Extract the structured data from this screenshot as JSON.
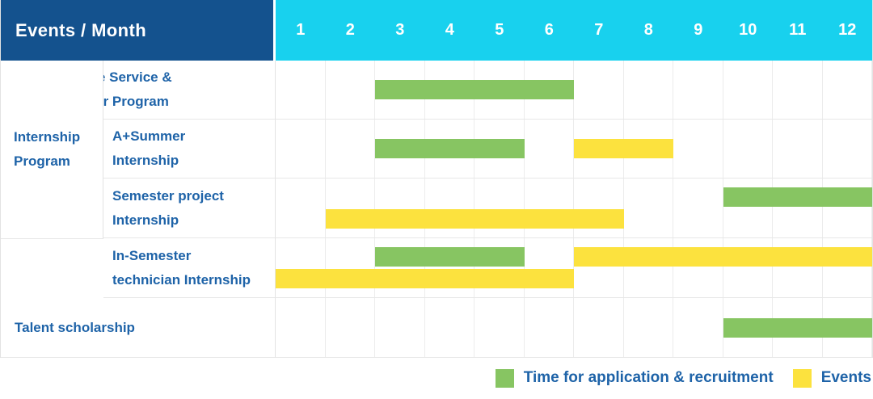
{
  "header": {
    "title": "Events / Month"
  },
  "colors": {
    "header_bg": "#14528E",
    "months_bg": "#18D1EE",
    "green": "#87C562",
    "yellow": "#FCE23E",
    "label_text": "#1E63A8"
  },
  "chart_data": {
    "type": "bar",
    "subtype": "gantt-timeline",
    "xlabel": "Month",
    "x_range": [
      1,
      12
    ],
    "months": [
      "1",
      "2",
      "3",
      "4",
      "5",
      "6",
      "7",
      "8",
      "9",
      "10",
      "11",
      "12"
    ],
    "group": {
      "label_lines": [
        "Internship",
        "Program"
      ],
      "spans_rows": [
        2,
        3,
        4
      ]
    },
    "rows": [
      {
        "id": "rd-substitute-service",
        "label_lines": [
          "RD Substitute Service &",
          "Advance Offer Program"
        ],
        "indent": false,
        "segments": [
          {
            "kind": "application",
            "from": 3,
            "to": 6,
            "lane": "single"
          }
        ]
      },
      {
        "id": "a-plus-summer-internship",
        "label_lines": [
          "A+Summer",
          "Internship"
        ],
        "indent": true,
        "segments": [
          {
            "kind": "application",
            "from": 3,
            "to": 5,
            "lane": "single"
          },
          {
            "kind": "events",
            "from": 7,
            "to": 8,
            "lane": "single"
          }
        ]
      },
      {
        "id": "semester-project-internship",
        "label_lines": [
          "Semester project",
          "Internship"
        ],
        "indent": true,
        "segments": [
          {
            "kind": "application",
            "from": 10,
            "to": 12,
            "lane": "top"
          },
          {
            "kind": "events",
            "from": 2,
            "to": 7,
            "lane": "bottom"
          }
        ]
      },
      {
        "id": "in-semester-technician-internship",
        "label_lines": [
          "In-Semester",
          "technician Internship"
        ],
        "indent": true,
        "segments": [
          {
            "kind": "application",
            "from": 3,
            "to": 5,
            "lane": "top"
          },
          {
            "kind": "events",
            "from": 7,
            "to": 12,
            "lane": "top"
          },
          {
            "kind": "events",
            "from": 1,
            "to": 6,
            "lane": "bottom"
          }
        ]
      },
      {
        "id": "talent-scholarship",
        "label_lines": [
          "Talent scholarship"
        ],
        "indent": false,
        "segments": [
          {
            "kind": "application",
            "from": 10,
            "to": 12,
            "lane": "single"
          }
        ]
      }
    ],
    "legend": [
      {
        "kind": "application",
        "label": "Time for application & recruitment"
      },
      {
        "kind": "events",
        "label": "Events"
      }
    ]
  }
}
